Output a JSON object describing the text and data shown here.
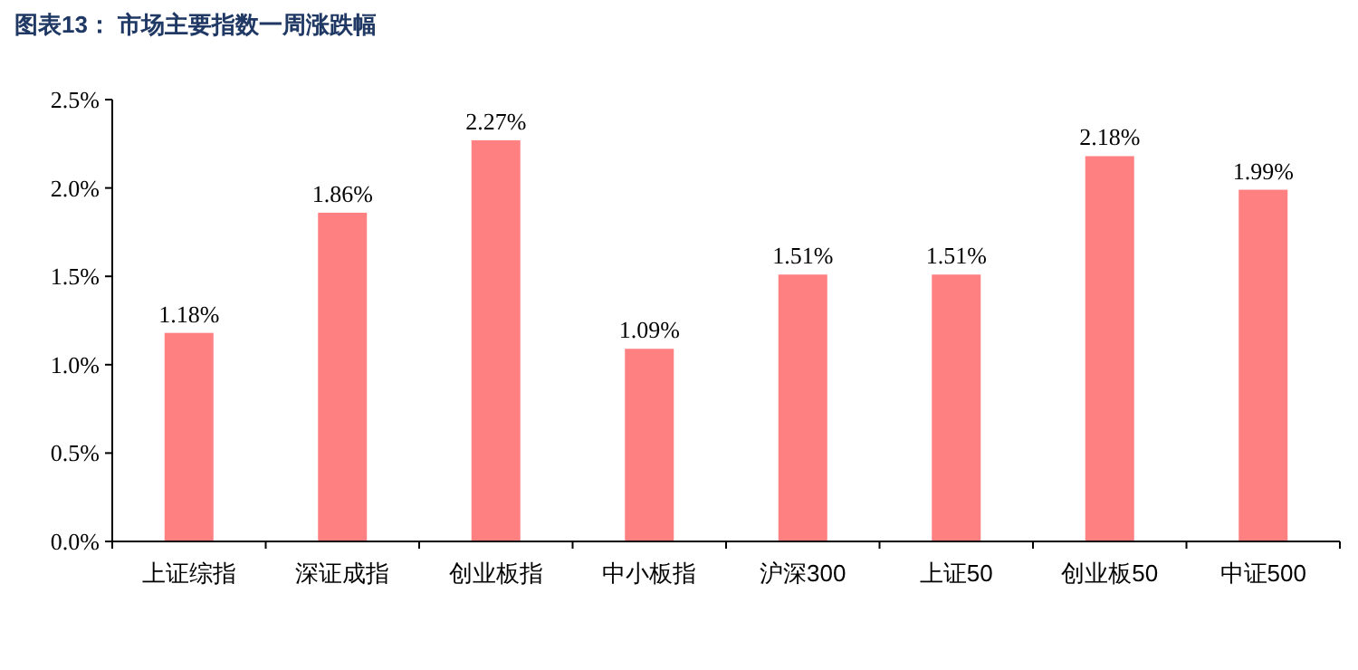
{
  "chart_data": {
    "type": "bar",
    "title": "图表13：  市场主要指数一周涨跌幅",
    "categories": [
      "上证综指",
      "深证成指",
      "创业板指",
      "中小板指",
      "沪深300",
      "上证50",
      "创业板50",
      "中证500"
    ],
    "values": [
      1.18,
      1.86,
      2.27,
      1.09,
      1.51,
      1.51,
      2.18,
      1.99
    ],
    "value_labels": [
      "1.18%",
      "1.86%",
      "2.27%",
      "1.09%",
      "1.51%",
      "1.51%",
      "2.18%",
      "1.99%"
    ],
    "color": "#ff8080",
    "ylim": [
      0,
      2.5
    ],
    "yticks": [
      {
        "value": 0,
        "label": "0.0%"
      },
      {
        "value": 0.5,
        "label": "0.5%"
      },
      {
        "value": 1.0,
        "label": "1.0%"
      },
      {
        "value": 1.5,
        "label": "1.5%"
      },
      {
        "value": 2.0,
        "label": "2.0%"
      },
      {
        "value": 2.5,
        "label": "2.5%"
      }
    ],
    "grid": false
  }
}
